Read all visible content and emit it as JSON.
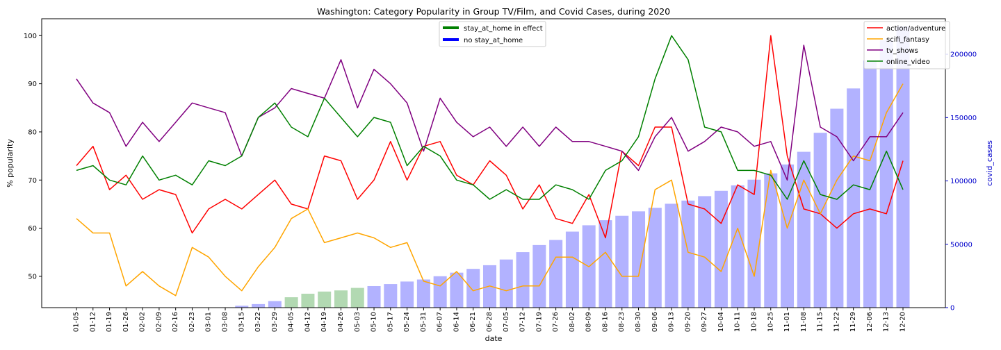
{
  "chart_data": {
    "type": "line",
    "title": "Washington: Category Popularity in Group TV/Film, and Covid Cases, during 2020",
    "xlabel": "date",
    "ylabel": "% popularity",
    "y2label": "covid_cases",
    "ylim": [
      43.5,
      103.5
    ],
    "y2lim": [
      0,
      228000
    ],
    "yticks": [
      50,
      60,
      70,
      80,
      90,
      100
    ],
    "y2ticks": [
      0,
      50000,
      100000,
      150000,
      200000
    ],
    "grid": false,
    "colors": {
      "y2_axis": "#0000cc",
      "stay_bar": "#008000",
      "no_stay_bar": "#0000ff"
    },
    "categories": [
      "01-05",
      "01-12",
      "01-19",
      "01-26",
      "02-02",
      "02-09",
      "02-16",
      "02-23",
      "03-01",
      "03-08",
      "03-15",
      "03-22",
      "03-29",
      "04-05",
      "04-12",
      "04-19",
      "04-26",
      "05-03",
      "05-10",
      "05-17",
      "05-24",
      "05-31",
      "06-07",
      "06-14",
      "06-21",
      "06-28",
      "07-05",
      "07-12",
      "07-19",
      "07-26",
      "08-02",
      "08-09",
      "08-16",
      "08-23",
      "08-30",
      "09-06",
      "09-13",
      "09-20",
      "09-27",
      "10-04",
      "10-11",
      "10-18",
      "10-25",
      "11-01",
      "11-08",
      "11-15",
      "11-22",
      "11-29",
      "12-06",
      "12-13",
      "12-20"
    ],
    "series": [
      {
        "name": "action/adventure",
        "color": "#ff0000",
        "values": [
          73,
          77,
          68,
          71,
          66,
          68,
          67,
          59,
          64,
          66,
          64,
          67,
          70,
          65,
          64,
          75,
          74,
          66,
          70,
          78,
          70,
          77,
          78,
          71,
          69,
          74,
          71,
          64,
          69,
          62,
          61,
          67,
          58,
          76,
          73,
          81,
          81,
          65,
          64,
          61,
          69,
          67,
          100,
          75,
          64,
          63,
          60,
          63,
          64,
          63,
          74
        ]
      },
      {
        "name": "scifi_fantasy",
        "color": "#ffa500",
        "values": [
          62,
          59,
          59,
          48,
          51,
          48,
          46,
          56,
          54,
          50,
          47,
          52,
          56,
          62,
          64,
          57,
          58,
          59,
          58,
          56,
          57,
          49,
          48,
          51,
          47,
          48,
          47,
          48,
          48,
          54,
          54,
          52,
          55,
          50,
          50,
          68,
          70,
          55,
          54,
          51,
          60,
          50,
          72,
          60,
          70,
          63,
          70,
          75,
          74,
          84,
          90
        ]
      },
      {
        "name": "tv_shows",
        "color": "#800080",
        "values": [
          91,
          86,
          84,
          77,
          82,
          78,
          82,
          86,
          85,
          84,
          75,
          83,
          85,
          89,
          88,
          87,
          95,
          85,
          93,
          90,
          86,
          76,
          87,
          82,
          79,
          81,
          77,
          81,
          77,
          81,
          78,
          78,
          77,
          76,
          72,
          79,
          83,
          76,
          78,
          81,
          80,
          77,
          78,
          70,
          98,
          81,
          79,
          74,
          79,
          79,
          84
        ]
      },
      {
        "name": "online_video",
        "color": "#008000",
        "values": [
          72,
          73,
          70,
          69,
          75,
          70,
          71,
          69,
          74,
          73,
          75,
          83,
          86,
          81,
          79,
          87,
          83,
          79,
          83,
          82,
          73,
          77,
          75,
          70,
          69,
          66,
          68,
          66,
          66,
          69,
          68,
          66,
          72,
          74,
          79,
          91,
          100,
          95,
          81,
          80,
          72,
          72,
          71,
          66,
          74,
          67,
          66,
          69,
          68,
          76,
          68
        ]
      }
    ],
    "covid_cases": [
      0,
      0,
      0,
      0,
      0,
      0,
      0,
      0,
      0,
      0,
      1500,
      2800,
      5200,
      8200,
      11000,
      12700,
      13600,
      15600,
      17000,
      18600,
      20600,
      22200,
      24800,
      27600,
      30600,
      33500,
      38000,
      43800,
      49400,
      53400,
      60000,
      65000,
      69000,
      72500,
      76000,
      78800,
      82000,
      84500,
      88000,
      92200,
      96500,
      101000,
      106000,
      113000,
      123000,
      138000,
      157000,
      173000,
      195000,
      211000,
      222000
    ],
    "stay_at_home": [
      false,
      false,
      false,
      false,
      false,
      false,
      false,
      false,
      false,
      false,
      false,
      false,
      false,
      true,
      true,
      true,
      true,
      true,
      false,
      false,
      false,
      false,
      false,
      false,
      false,
      false,
      false,
      false,
      false,
      false,
      false,
      false,
      false,
      false,
      false,
      false,
      false,
      false,
      false,
      false,
      false,
      false,
      false,
      false,
      false,
      false,
      false,
      false,
      false,
      false,
      false
    ],
    "legend_left": {
      "placement": "top-center",
      "items": [
        {
          "label": "stay_at_home in effect",
          "color": "#008000"
        },
        {
          "label": "no stay_at_home",
          "color": "#0000ff"
        }
      ]
    },
    "legend_right": {
      "placement": "top-right"
    }
  }
}
